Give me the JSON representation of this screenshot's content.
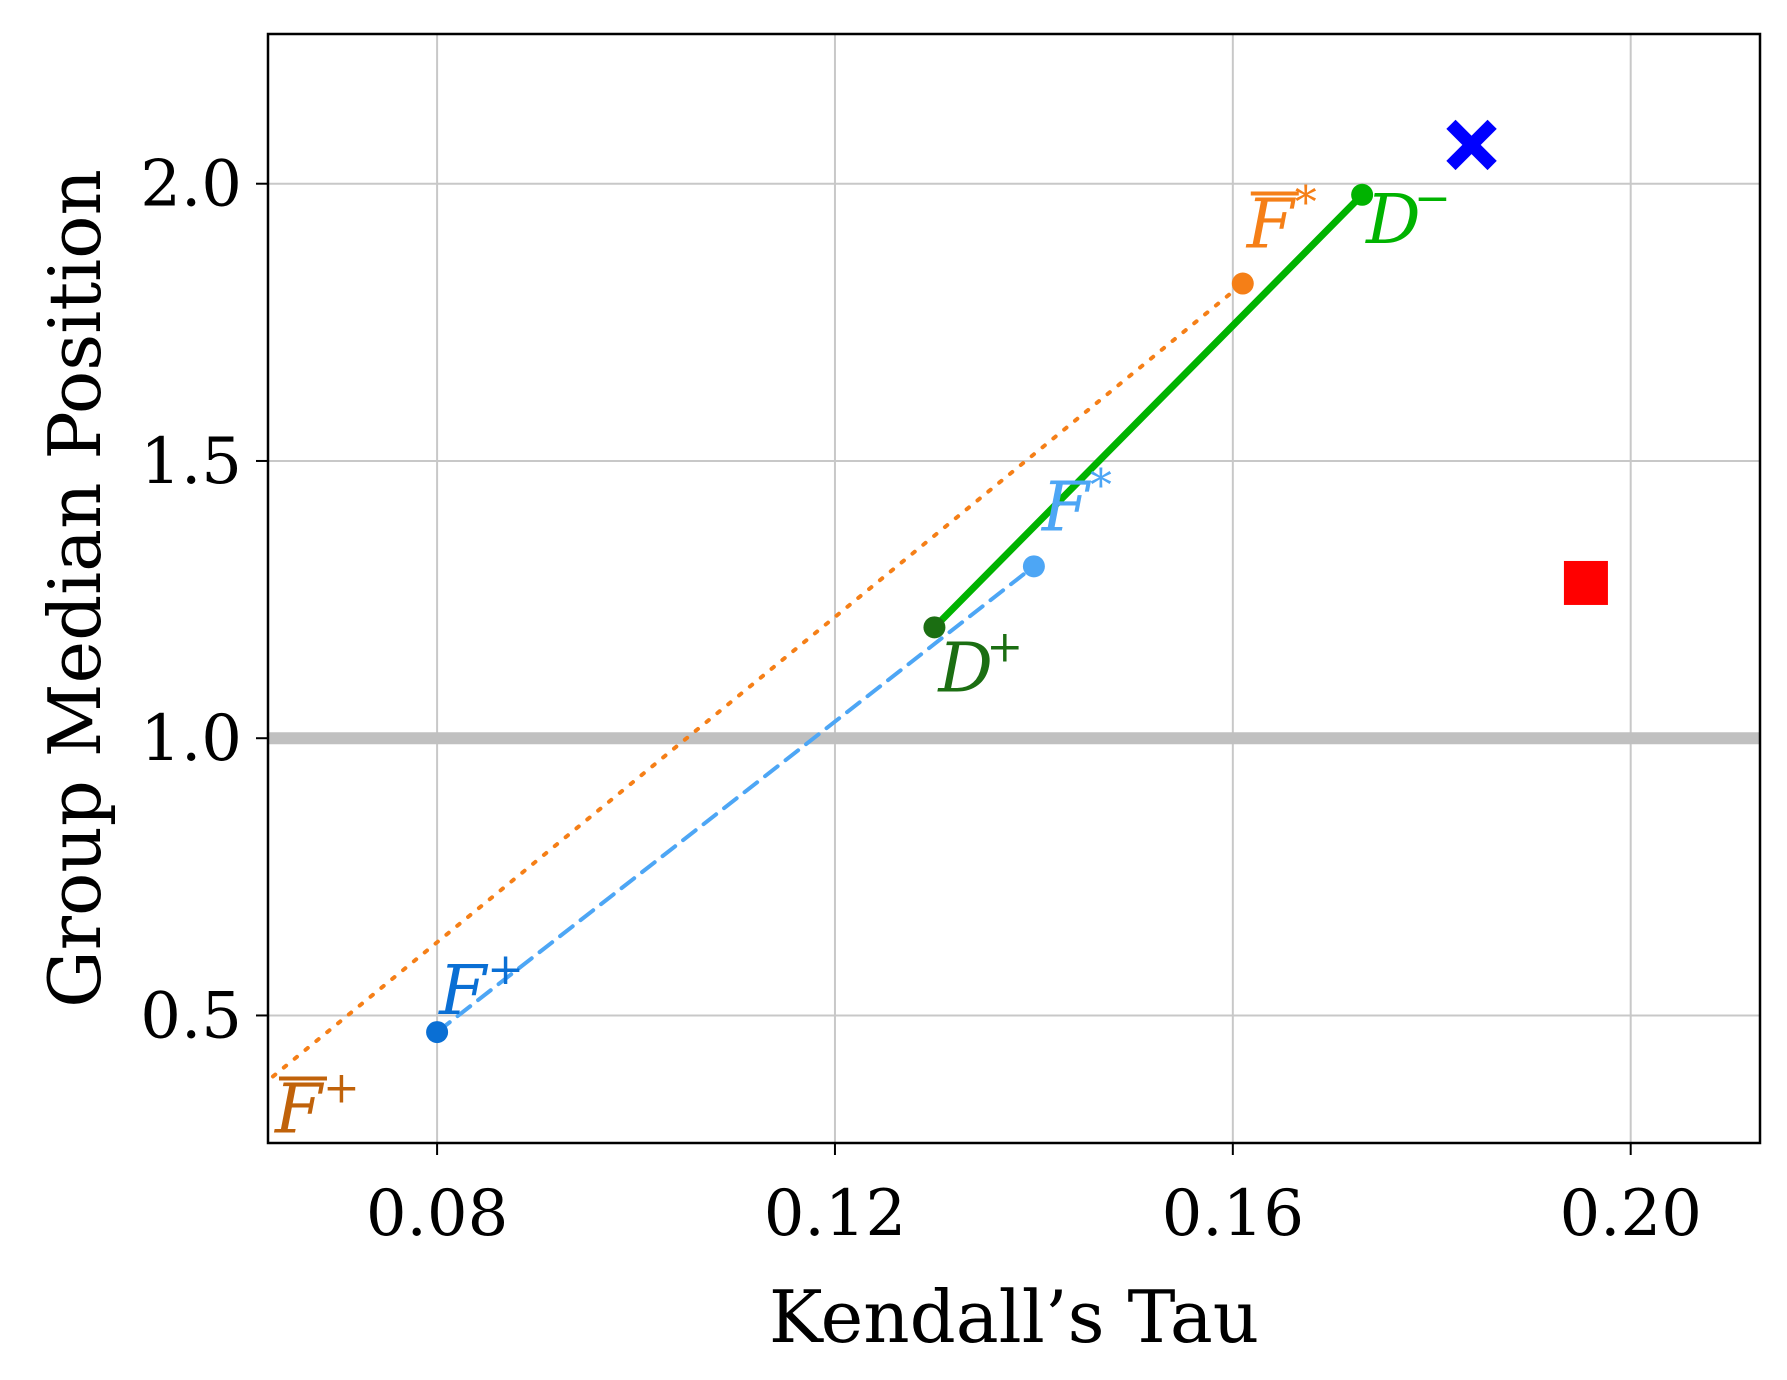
{
  "chart_data": {
    "type": "line",
    "xlabel": "Kendall’s Tau",
    "ylabel": "Group Median Position",
    "xlim": [
      0.063,
      0.213
    ],
    "ylim": [
      0.27,
      2.27
    ],
    "xticks": [
      0.08,
      0.12,
      0.16,
      0.2
    ],
    "xtick_labels": [
      "0.08",
      "0.12",
      "0.16",
      "0.20"
    ],
    "yticks": [
      0.5,
      1.0,
      1.5,
      2.0
    ],
    "ytick_labels": [
      "0.5",
      "1.0",
      "1.5",
      "2.0"
    ],
    "grid": true,
    "reference_line": {
      "y": 1.0,
      "color": "#c0c0c0"
    },
    "series": [
      {
        "style": "dotted",
        "color": "#f57f17",
        "points": [
          {
            "x": 0.0635,
            "y": 0.39,
            "label": "F",
            "sup": "+",
            "overline": true,
            "label_color": "#c0620a",
            "marker": false
          },
          {
            "x": 0.161,
            "y": 1.82,
            "label": "F",
            "sup": "*",
            "overline": true,
            "label_color": "#f57f17",
            "marker": true
          }
        ]
      },
      {
        "style": "dashed",
        "color": "#4da6f5",
        "points": [
          {
            "x": 0.08,
            "y": 0.47,
            "label": "F",
            "sup": "+",
            "overline": false,
            "label_color": "#0a6fd4",
            "marker_color": "#0a6fd4",
            "marker": true
          },
          {
            "x": 0.14,
            "y": 1.31,
            "label": "F",
            "sup": "*",
            "overline": false,
            "label_color": "#4da6f5",
            "marker_color": "#4da6f5",
            "marker": true
          }
        ]
      },
      {
        "style": "solid",
        "color": "#00b300",
        "points": [
          {
            "x": 0.13,
            "y": 1.2,
            "label": "D",
            "sup": "+",
            "overline": false,
            "label_color": "#1b6e12",
            "marker_color": "#1b6e12",
            "marker": true
          },
          {
            "x": 0.173,
            "y": 1.98,
            "label": "D",
            "sup": "−",
            "overline": false,
            "label_color": "#00b300",
            "marker_color": "#00b300",
            "marker": true
          }
        ]
      }
    ],
    "markers": [
      {
        "shape": "x",
        "x": 0.184,
        "y": 2.07,
        "color": "#0000ff"
      },
      {
        "shape": "square",
        "x": 0.1955,
        "y": 1.28,
        "color": "#ff0000"
      }
    ]
  }
}
